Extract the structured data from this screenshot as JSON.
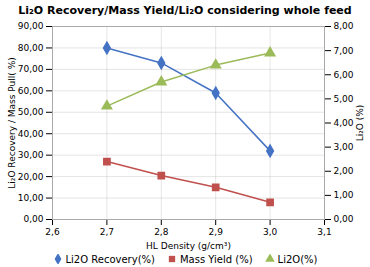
{
  "chart_data": {
    "type": "line",
    "title": "Li₂O Recovery/Mass Yield/Li₂O considering whole feed",
    "xlabel": "HL Density (g/cm³)",
    "ylabel": "Li₂O Recovery / Mass Pull( %)",
    "y2label": "Li₂O (%)",
    "x": [
      2.7,
      2.8,
      2.9,
      3.0
    ],
    "series": [
      {
        "name": "Li2O Recovery(%)",
        "color": "#4472c4",
        "marker": "diamond",
        "values": [
          80.0,
          73.0,
          59.0,
          32.0
        ]
      },
      {
        "name": "Mass Yield (%)",
        "color": "#c0504d",
        "marker": "square",
        "values": [
          27.0,
          20.5,
          15.0,
          8.0
        ]
      },
      {
        "name": "Li2O(%)",
        "color": "#9bbb59",
        "marker": "triangle",
        "axis": "y2",
        "values": [
          4.7,
          5.7,
          6.4,
          6.9
        ]
      }
    ],
    "xlim": [
      2.6,
      3.1
    ],
    "xticks": [
      {
        "value": 2.6,
        "label": "2,6"
      },
      {
        "value": 2.7,
        "label": "2,7"
      },
      {
        "value": 2.8,
        "label": "2,8"
      },
      {
        "value": 2.9,
        "label": "2,9"
      },
      {
        "value": 3.0,
        "label": "3,0"
      },
      {
        "value": 3.1,
        "label": "3,1"
      }
    ],
    "ylim": [
      0,
      90
    ],
    "yticks": [
      {
        "value": 0,
        "label": "0,00"
      },
      {
        "value": 10,
        "label": "10,00"
      },
      {
        "value": 20,
        "label": "20,00"
      },
      {
        "value": 30,
        "label": "30,00"
      },
      {
        "value": 40,
        "label": "40,00"
      },
      {
        "value": 50,
        "label": "50,00"
      },
      {
        "value": 60,
        "label": "60,00"
      },
      {
        "value": 70,
        "label": "70,00"
      },
      {
        "value": 80,
        "label": "80,00"
      },
      {
        "value": 90,
        "label": "90,00"
      }
    ],
    "y2lim": [
      0,
      8.0
    ],
    "y2ticks": [
      {
        "value": 0.0,
        "label": "0,00"
      },
      {
        "value": 1.0,
        "label": "1,00"
      },
      {
        "value": 2.0,
        "label": "2,00"
      },
      {
        "value": 3.0,
        "label": "3,00"
      },
      {
        "value": 4.0,
        "label": "4,00"
      },
      {
        "value": 5.0,
        "label": "5,00"
      },
      {
        "value": 6.0,
        "label": "6,00"
      },
      {
        "value": 7.0,
        "label": "7,00"
      },
      {
        "value": 8.0,
        "label": "8,00"
      }
    ],
    "grid": true,
    "legend": "bottom"
  }
}
